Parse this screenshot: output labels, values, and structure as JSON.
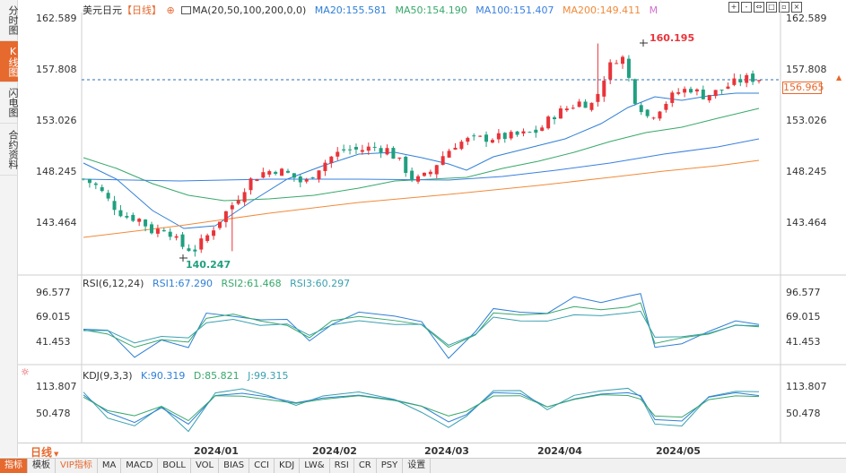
{
  "left_tabs": [
    "分时图",
    "K线图",
    "闪电图",
    "合约资料"
  ],
  "active_left_tab": 1,
  "main": {
    "symbol": "美元日元",
    "period_tag": "【日线】",
    "ma_label": "MA(20,50,100,200,0,0)",
    "ma20": "MA20:155.581",
    "ma50": "MA50:154.190",
    "ma100": "MA100:151.407",
    "ma200": "MA200:149.411",
    "m_label": "M",
    "y_ticks": [
      "162.589",
      "157.808",
      "153.026",
      "148.245",
      "143.464"
    ],
    "y_values": [
      162.589,
      157.808,
      153.026,
      148.245,
      143.464
    ],
    "current_price": "156.965",
    "high_label": "160.195",
    "low_label": "140.247"
  },
  "rsi": {
    "label": "RSI(6,12,24)",
    "rsi1": "RSI1:67.290",
    "rsi2": "RSI2:61.468",
    "rsi3": "RSI3:60.297",
    "ticks": [
      "96.577",
      "69.015",
      "41.453"
    ]
  },
  "kdj": {
    "label": "KDJ(9,3,3)",
    "k": "K:90.319",
    "d": "D:85.821",
    "j": "J:99.315",
    "ticks": [
      "113.807",
      "50.478"
    ]
  },
  "x_labels": [
    "2024/01",
    "2024/02",
    "2024/03",
    "2024/04",
    "2024/05"
  ],
  "period_button": "日线",
  "bottom_tabs": [
    "指标",
    "模板",
    "VIP指标",
    "MA",
    "MACD",
    "BOLL",
    "VOL",
    "BIAS",
    "CCI",
    "KDJ",
    "LW&",
    "RSI",
    "CR",
    "PSY",
    "设置"
  ],
  "toolbar_icons": [
    "zoom-in-icon",
    "zoom-out-icon",
    "fit-icon",
    "expand-icon",
    "restore-icon",
    "close-icon"
  ],
  "colors": {
    "up": "#e8343a",
    "down": "#20a080",
    "ma20": "#2f7fd6",
    "ma50": "#37a86a",
    "ma100": "#3a80e0",
    "ma200": "#f08a3a",
    "rsi1": "#2f7fd6",
    "rsi2": "#37a86a",
    "rsi3": "#3aa0b0",
    "accent": "#e6692e"
  },
  "chart_data": [
    {
      "type": "candlestick",
      "title": "美元日元 【日线】",
      "x": [
        "2024/01",
        "2024/02",
        "2024/03",
        "2024/04",
        "2024/05"
      ],
      "ylim": [
        140.247,
        162.589
      ],
      "annotations": [
        {
          "label": "160.195",
          "type": "high"
        },
        {
          "label": "140.247",
          "type": "low"
        }
      ],
      "close_path": [
        147.5,
        146.8,
        145.2,
        144.0,
        143.8,
        142.6,
        143.0,
        141.3,
        140.8,
        142.2,
        143.9,
        145.4,
        147.3,
        148.1,
        148.4,
        147.9,
        147.0,
        148.5,
        149.6,
        150.3,
        150.2,
        150.5,
        150.3,
        149.0,
        147.3,
        147.9,
        149.6,
        150.8,
        151.2,
        151.3,
        151.4,
        151.5,
        151.7,
        152.0,
        153.4,
        154.1,
        154.7,
        154.5,
        157.8,
        159.3,
        155.0,
        153.2,
        154.4,
        155.6,
        156.0,
        155.3,
        155.7,
        156.4,
        156.9,
        156.9
      ],
      "series": [
        {
          "name": "MA20",
          "label": "MA20:155.581"
        },
        {
          "name": "MA50",
          "label": "MA50:154.190"
        },
        {
          "name": "MA100",
          "label": "MA100:151.407"
        },
        {
          "name": "MA200",
          "label": "MA200:149.411"
        }
      ]
    },
    {
      "type": "line",
      "title": "RSI(6,12,24)",
      "ylim": [
        41.453,
        96.577
      ],
      "series": [
        {
          "name": "RSI1",
          "label": "RSI1:67.290",
          "last": 67.29
        },
        {
          "name": "RSI2",
          "label": "RSI2:61.468",
          "last": 61.468
        },
        {
          "name": "RSI3",
          "label": "RSI3:60.297",
          "last": 60.297
        }
      ]
    },
    {
      "type": "line",
      "title": "KDJ(9,3,3)",
      "ylim": [
        50.478,
        113.807
      ],
      "series": [
        {
          "name": "K",
          "label": "K:90.319",
          "last": 90.319
        },
        {
          "name": "D",
          "label": "D:85.821",
          "last": 85.821
        },
        {
          "name": "J",
          "label": "J:99.315",
          "last": 99.315
        }
      ]
    }
  ]
}
